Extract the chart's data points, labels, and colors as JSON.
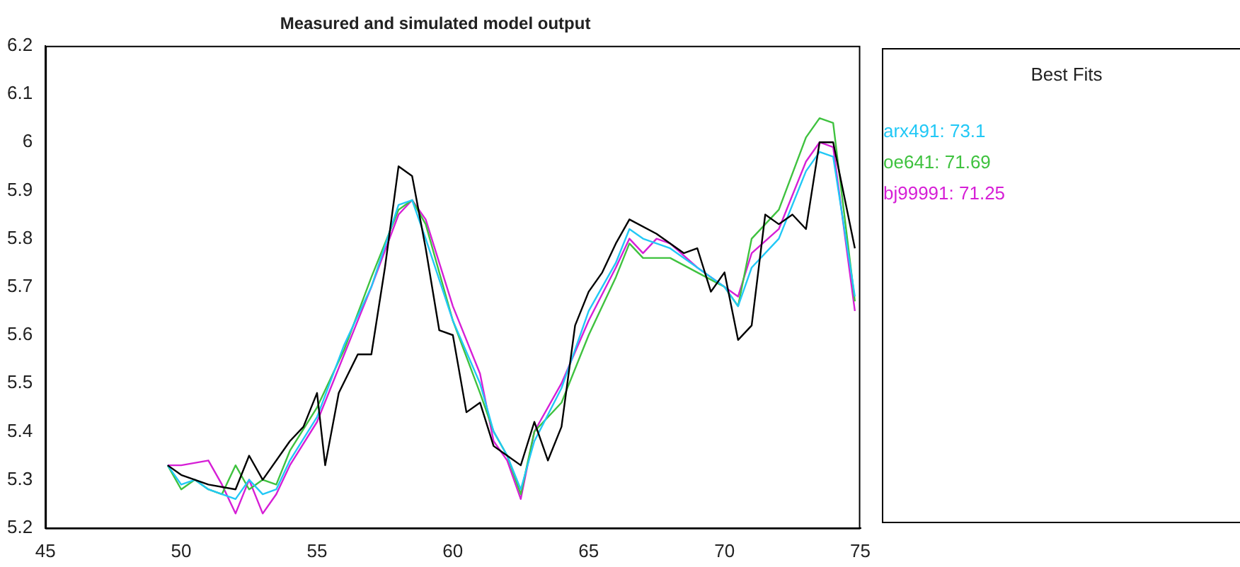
{
  "chart_data": {
    "type": "line",
    "title": "Measured and simulated model output",
    "legend_title": "Best Fits",
    "legend": "right",
    "grid": false,
    "marker": "none",
    "line_style": "solid",
    "xlim": [
      45,
      75
    ],
    "xticks": [
      45,
      50,
      55,
      60,
      65,
      70,
      75
    ],
    "ylim": [
      5.2,
      6.2
    ],
    "yticks": [
      5.2,
      5.3,
      5.4,
      5.5,
      5.6,
      5.7,
      5.8,
      5.9,
      6,
      6.1,
      6.2
    ],
    "series": [
      {
        "color": "#000000",
        "x": [
          49.5,
          50,
          51,
          52,
          52.5,
          53,
          54,
          54.5,
          55,
          55.3,
          55.8,
          56.5,
          57,
          57.5,
          58,
          58.5,
          59,
          59.5,
          60,
          60.5,
          61,
          61.5,
          62,
          62.5,
          63,
          63.5,
          64,
          64.5,
          65,
          65.5,
          66,
          66.5,
          67.5,
          68.5,
          69,
          69.5,
          70,
          70.5,
          71,
          71.5,
          72,
          72.5,
          73,
          73.5,
          74,
          74.8
        ],
        "values": [
          5.33,
          5.31,
          5.29,
          5.28,
          5.35,
          5.3,
          5.38,
          5.41,
          5.48,
          5.33,
          5.48,
          5.56,
          5.56,
          5.74,
          5.95,
          5.93,
          5.78,
          5.61,
          5.6,
          5.44,
          5.46,
          5.37,
          5.35,
          5.33,
          5.42,
          5.34,
          5.41,
          5.62,
          5.69,
          5.73,
          5.79,
          5.84,
          5.81,
          5.77,
          5.78,
          5.69,
          5.73,
          5.59,
          5.62,
          5.85,
          5.83,
          5.85,
          5.82,
          6,
          6,
          5.78
        ]
      },
      {
        "name": "arx491: 73.1",
        "color": "#21c8f6",
        "x": [
          49.5,
          50,
          50.5,
          51,
          52,
          52.5,
          53,
          53.5,
          54,
          55,
          56,
          57,
          58,
          58.5,
          59,
          60,
          61,
          61.5,
          62,
          62.5,
          63,
          64,
          65,
          66,
          66.5,
          67,
          68,
          69,
          70,
          70.5,
          71,
          72,
          73,
          73.5,
          74,
          74.8
        ],
        "values": [
          5.33,
          5.29,
          5.3,
          5.28,
          5.26,
          5.3,
          5.27,
          5.28,
          5.34,
          5.43,
          5.58,
          5.7,
          5.87,
          5.88,
          5.8,
          5.63,
          5.5,
          5.4,
          5.35,
          5.28,
          5.38,
          5.49,
          5.65,
          5.75,
          5.82,
          5.8,
          5.78,
          5.74,
          5.7,
          5.66,
          5.74,
          5.8,
          5.94,
          5.98,
          5.97,
          5.68
        ]
      },
      {
        "name": "oe641: 71.69",
        "color": "#3fc23f",
        "x": [
          49.5,
          50,
          50.5,
          51,
          51.5,
          52,
          52.5,
          53,
          53.5,
          54,
          55,
          56,
          57,
          58,
          58.5,
          59,
          60,
          61,
          61.5,
          62,
          62.5,
          63,
          64,
          65,
          66,
          66.5,
          67,
          68,
          69,
          70,
          70.5,
          71,
          72,
          73,
          73.5,
          74,
          74.8
        ],
        "values": [
          5.33,
          5.28,
          5.3,
          5.28,
          5.27,
          5.33,
          5.28,
          5.3,
          5.29,
          5.36,
          5.45,
          5.57,
          5.72,
          5.86,
          5.88,
          5.83,
          5.63,
          5.48,
          5.4,
          5.35,
          5.27,
          5.4,
          5.46,
          5.6,
          5.72,
          5.79,
          5.76,
          5.76,
          5.73,
          5.7,
          5.66,
          5.8,
          5.86,
          6.01,
          6.05,
          6.04,
          5.67
        ]
      },
      {
        "name": "bj99991: 71.25",
        "color": "#d61fd6",
        "x": [
          49.5,
          50,
          51,
          51.5,
          52,
          52.5,
          53,
          53.5,
          54,
          55,
          56,
          57,
          58,
          58.5,
          59,
          60,
          61,
          61.5,
          62,
          62.5,
          63,
          64,
          65,
          66,
          66.5,
          67,
          67.5,
          68,
          69,
          70,
          70.5,
          71,
          72,
          73,
          73.5,
          74,
          74.8
        ],
        "values": [
          5.33,
          5.33,
          5.34,
          5.29,
          5.23,
          5.3,
          5.23,
          5.27,
          5.33,
          5.42,
          5.56,
          5.7,
          5.85,
          5.88,
          5.84,
          5.66,
          5.52,
          5.38,
          5.34,
          5.26,
          5.4,
          5.5,
          5.63,
          5.74,
          5.8,
          5.77,
          5.8,
          5.79,
          5.74,
          5.7,
          5.68,
          5.77,
          5.82,
          5.96,
          6,
          5.99,
          5.65
        ]
      }
    ]
  }
}
